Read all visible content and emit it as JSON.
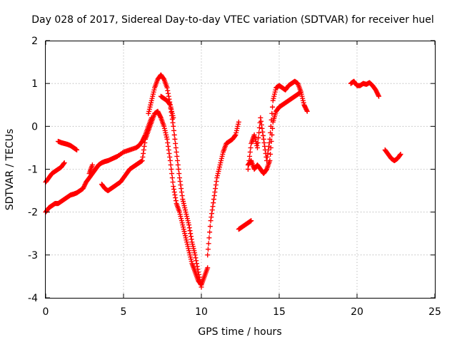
{
  "chart_data": {
    "type": "scatter",
    "title": "Day 028 of 2017, Sidereal Day-to-day VTEC variation (SDTVAR) for receiver huel",
    "xlabel": "GPS time / hours",
    "ylabel": "SDTVAR / TECUs",
    "xlim": [
      0,
      25
    ],
    "ylim": [
      -4,
      2
    ],
    "x_ticks": [
      0,
      5,
      10,
      15,
      20,
      25
    ],
    "y_ticks": [
      -4,
      -3,
      -2,
      -1,
      0,
      1,
      2
    ],
    "x_tick_labels": [
      "0",
      "5",
      "10",
      "15",
      "20",
      "25"
    ],
    "y_tick_labels": [
      "-4",
      "-3",
      "-2",
      "-1",
      "0",
      "1",
      "2"
    ],
    "grid": true,
    "marker": "plus",
    "color": "#ff0000",
    "series": [
      {
        "x": [
          0.0,
          0.2,
          0.4,
          0.6,
          0.8,
          1.0,
          1.2
        ],
        "y": [
          -1.3,
          -1.2,
          -1.1,
          -1.05,
          -1.0,
          -0.95,
          -0.85
        ]
      },
      {
        "x": [
          0.0,
          0.2,
          0.4,
          0.6,
          0.8,
          1.0,
          1.2,
          1.4,
          1.6,
          1.8,
          2.0,
          2.2,
          2.4,
          2.6,
          2.8,
          3.0,
          3.2,
          3.4,
          3.6,
          3.8,
          4.0,
          4.3,
          4.6,
          5.0,
          5.4,
          5.8,
          6.0,
          6.2,
          6.4,
          6.6,
          6.8
        ],
        "y": [
          -2.0,
          -1.9,
          -1.85,
          -1.8,
          -1.8,
          -1.75,
          -1.7,
          -1.65,
          -1.6,
          -1.58,
          -1.55,
          -1.5,
          -1.45,
          -1.3,
          -1.2,
          -1.1,
          -1.0,
          -0.9,
          -0.85,
          -0.82,
          -0.8,
          -0.75,
          -0.7,
          -0.6,
          -0.55,
          -0.5,
          -0.45,
          -0.35,
          -0.2,
          0.0,
          0.2
        ]
      },
      {
        "x": [
          0.8,
          1.0,
          1.2,
          1.4,
          1.6,
          1.8,
          2.0
        ],
        "y": [
          -0.35,
          -0.38,
          -0.4,
          -0.42,
          -0.45,
          -0.5,
          -0.55
        ]
      },
      {
        "x": [
          2.8,
          3.0
        ],
        "y": [
          -1.1,
          -0.9
        ]
      },
      {
        "x": [
          3.6,
          3.8,
          4.0,
          4.2,
          4.4,
          4.6,
          4.8,
          5.0,
          5.2,
          5.4,
          5.6,
          5.8,
          6.0,
          6.2,
          6.4,
          6.6,
          6.8,
          7.0,
          7.2,
          7.4,
          7.6,
          7.8,
          8.0,
          8.2,
          8.4,
          8.6,
          8.8,
          9.0,
          9.2,
          9.4,
          9.6,
          9.8,
          10.0,
          10.2,
          10.4
        ],
        "y": [
          -1.35,
          -1.45,
          -1.5,
          -1.45,
          -1.4,
          -1.35,
          -1.3,
          -1.2,
          -1.1,
          -1.0,
          -0.95,
          -0.9,
          -0.85,
          -0.8,
          -0.3,
          -0.1,
          0.1,
          0.3,
          0.35,
          0.2,
          0.0,
          -0.3,
          -0.8,
          -1.4,
          -1.8,
          -2.0,
          -2.3,
          -2.6,
          -2.9,
          -3.2,
          -3.4,
          -3.6,
          -3.7,
          -3.5,
          -3.3
        ]
      },
      {
        "x": [
          6.6,
          6.8,
          7.0,
          7.2,
          7.4,
          7.6,
          7.8,
          8.0,
          8.2,
          8.4,
          8.6,
          8.8,
          9.0,
          9.2,
          9.4,
          9.6,
          9.8,
          10.0
        ],
        "y": [
          0.3,
          0.6,
          0.9,
          1.1,
          1.2,
          1.1,
          0.9,
          0.5,
          0.0,
          -0.6,
          -1.2,
          -1.7,
          -2.0,
          -2.3,
          -2.7,
          -3.0,
          -3.4,
          -3.75
        ]
      },
      {
        "x": [
          7.4,
          7.6,
          7.8,
          8.0,
          8.2
        ],
        "y": [
          0.7,
          0.65,
          0.6,
          0.5,
          0.2
        ]
      },
      {
        "x": [
          10.4,
          10.6,
          10.8,
          11.0,
          11.2,
          11.4,
          11.6,
          11.8,
          12.0,
          12.2,
          12.4
        ],
        "y": [
          -3.0,
          -2.2,
          -1.7,
          -1.2,
          -0.9,
          -0.6,
          -0.4,
          -0.35,
          -0.3,
          -0.2,
          0.1
        ]
      },
      {
        "x": [
          12.4,
          12.6,
          12.8,
          13.0,
          13.2
        ],
        "y": [
          -2.4,
          -2.35,
          -2.3,
          -2.25,
          -2.2
        ]
      },
      {
        "x": [
          13.0,
          13.2,
          13.4,
          13.6,
          13.8,
          14.0,
          14.2,
          14.4,
          14.6,
          14.8,
          15.0,
          15.2,
          15.4,
          15.6,
          15.8,
          16.0,
          16.2,
          16.4,
          16.6,
          16.8
        ],
        "y": [
          -1.0,
          -0.4,
          -0.2,
          -0.5,
          0.2,
          -0.3,
          -0.8,
          -0.3,
          0.6,
          0.9,
          0.95,
          0.9,
          0.85,
          0.95,
          1.0,
          1.05,
          1.0,
          0.8,
          0.5,
          0.35
        ]
      },
      {
        "x": [
          13.0,
          13.2,
          13.4,
          13.6,
          13.8,
          14.0,
          14.2,
          14.4,
          14.6,
          14.8,
          15.0,
          15.2,
          15.4,
          15.6,
          15.8,
          16.0,
          16.2,
          16.4
        ],
        "y": [
          -0.9,
          -0.8,
          -1.0,
          -0.9,
          -1.0,
          -1.1,
          -1.0,
          -0.8,
          0.1,
          0.35,
          0.45,
          0.5,
          0.55,
          0.6,
          0.65,
          0.7,
          0.75,
          0.8
        ]
      },
      {
        "x": [
          19.6,
          19.8,
          20.0,
          20.2,
          20.4,
          20.6,
          20.8,
          21.0,
          21.2,
          21.4
        ],
        "y": [
          1.0,
          1.05,
          0.95,
          0.95,
          1.0,
          0.98,
          1.02,
          0.95,
          0.85,
          0.7
        ]
      },
      {
        "x": [
          21.8,
          22.0,
          22.2,
          22.4,
          22.6,
          22.8
        ],
        "y": [
          -0.55,
          -0.65,
          -0.75,
          -0.8,
          -0.75,
          -0.65
        ]
      }
    ]
  }
}
